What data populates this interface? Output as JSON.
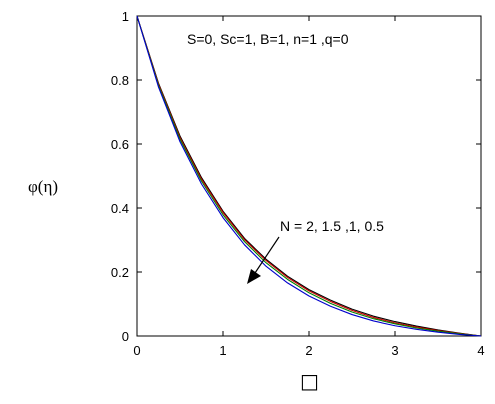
{
  "chart_data": {
    "type": "line",
    "ylabel": "φ(η)",
    "xlabel_glyph": "□",
    "xlim": [
      0,
      4
    ],
    "ylim": [
      0,
      1
    ],
    "xticks": [
      "0",
      "1",
      "2",
      "3",
      "4"
    ],
    "yticks": [
      "0",
      "0.2",
      "0.4",
      "0.6",
      "0.8",
      "1"
    ],
    "grid": false,
    "params_annotation": "S=0, Sc=1, B=1, n=1 ,q=0",
    "arrow_annotation": "N = 2, 1.5 ,1, 0.5",
    "x": [
      0,
      0.25,
      0.5,
      0.75,
      1.0,
      1.25,
      1.5,
      1.75,
      2.0,
      2.25,
      2.5,
      2.75,
      3.0,
      3.25,
      3.5,
      3.75,
      4.0
    ],
    "series": [
      {
        "color": "#000000",
        "values": [
          1.0,
          0.79,
          0.625,
          0.495,
          0.39,
          0.305,
          0.24,
          0.187,
          0.145,
          0.112,
          0.084,
          0.062,
          0.045,
          0.031,
          0.019,
          0.009,
          0.0
        ]
      },
      {
        "color": "#cc0000",
        "values": [
          1.0,
          0.787,
          0.62,
          0.49,
          0.386,
          0.301,
          0.236,
          0.183,
          0.141,
          0.108,
          0.08,
          0.058,
          0.041,
          0.028,
          0.017,
          0.008,
          0.0
        ]
      },
      {
        "color": "#008000",
        "values": [
          1.0,
          0.783,
          0.615,
          0.484,
          0.379,
          0.295,
          0.229,
          0.177,
          0.135,
          0.102,
          0.075,
          0.054,
          0.038,
          0.025,
          0.015,
          0.007,
          0.0
        ]
      },
      {
        "color": "#0000cc",
        "values": [
          1.0,
          0.778,
          0.607,
          0.475,
          0.37,
          0.285,
          0.218,
          0.166,
          0.125,
          0.093,
          0.067,
          0.047,
          0.032,
          0.021,
          0.012,
          0.005,
          0.0
        ]
      }
    ]
  }
}
